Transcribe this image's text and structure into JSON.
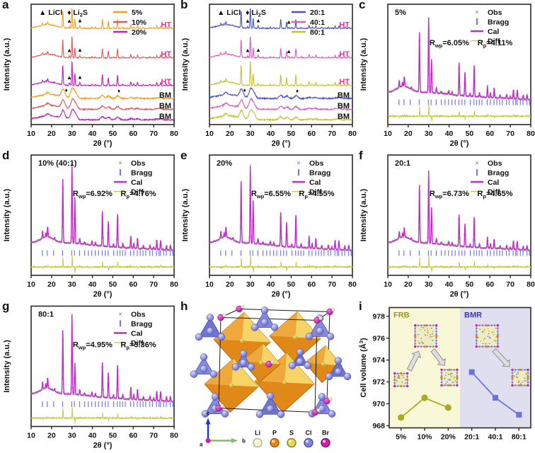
{
  "axis": {
    "xlabel": "2θ (°)",
    "ylabel": "Intensity (a.u.)",
    "xticks": [
      10,
      20,
      30,
      40,
      50,
      60,
      70,
      80
    ],
    "xlim": [
      10,
      80
    ]
  },
  "marker_legend": {
    "sym1": "▲",
    "name1": "LiCl",
    "sym2": "♦",
    "name2_base": "Li",
    "name2_sub": "2",
    "name2_end": "S"
  },
  "rietveld_legend": [
    "Obs",
    "Bragg",
    "Cal",
    "Diff"
  ],
  "colors": {
    "obs": "#7f7f7f",
    "bragg": "#7878e8",
    "cal": "#c02ec8",
    "diff": "#c6c63c",
    "ht_label": "#ee2e9b",
    "bm_label": "#111111",
    "axis": "#2b2b2b"
  },
  "shared": {
    "ht_peaks": [
      [
        15.6,
        0.09
      ],
      [
        17.2,
        0.05
      ],
      [
        18.1,
        0.13
      ],
      [
        21.5,
        0.03
      ],
      [
        25.5,
        0.8
      ],
      [
        30.0,
        1.0
      ],
      [
        31.4,
        0.48
      ],
      [
        33.8,
        0.07
      ],
      [
        36.2,
        0.03
      ],
      [
        39.8,
        0.05
      ],
      [
        41.5,
        0.04
      ],
      [
        44.9,
        0.44
      ],
      [
        47.8,
        0.32
      ],
      [
        50.3,
        0.04
      ],
      [
        52.3,
        0.42
      ],
      [
        54.9,
        0.05
      ],
      [
        58.8,
        0.15
      ],
      [
        60.3,
        0.06
      ],
      [
        62.1,
        0.13
      ],
      [
        65.0,
        0.04
      ],
      [
        68.2,
        0.05
      ],
      [
        70.0,
        0.03
      ],
      [
        71.5,
        0.12
      ],
      [
        73.4,
        0.12
      ],
      [
        76.3,
        0.05
      ],
      [
        78.2,
        0.06
      ]
    ],
    "bm_peaks": [
      [
        18.0,
        0.25
      ],
      [
        25.7,
        0.85
      ],
      [
        30.2,
        1.0
      ],
      [
        31.8,
        0.55
      ],
      [
        44.9,
        0.35
      ],
      [
        47.9,
        0.28
      ],
      [
        52.4,
        0.3
      ],
      [
        59.0,
        0.12
      ],
      [
        62.0,
        0.1
      ],
      [
        71.8,
        0.08
      ],
      [
        73.5,
        0.08
      ]
    ],
    "bragg_positions": [
      15.5,
      17.9,
      21.0,
      25.4,
      29.9,
      31.2,
      33.7,
      36.2,
      38.0,
      39.7,
      41.4,
      43.0,
      44.8,
      46.3,
      47.7,
      50.4,
      52.2,
      53.5,
      54.8,
      56.1,
      58.7,
      60.2,
      62.0,
      63.4,
      64.8,
      66.1,
      68.1,
      69.4,
      71.4,
      72.6,
      73.3,
      74.9,
      76.2,
      78.1,
      79.4
    ]
  },
  "chart_data": [
    {
      "panel": "a",
      "type": "line",
      "subtype": "xrd-stack",
      "xlabel": "2θ (°)",
      "ylabel": "Intensity (a.u.)",
      "xlim": [
        10,
        80
      ],
      "legend": [
        {
          "label": "5%",
          "color": "#f59e2b"
        },
        {
          "label": "10%",
          "color": "#e25b5b"
        },
        {
          "label": "20%",
          "color": "#bb22bb"
        }
      ],
      "traces": [
        {
          "name": "5% HT",
          "color": "#f59e2b",
          "kind": "HT",
          "offset": 0.79,
          "amp": 0.175,
          "right": "HT",
          "extra": [
            [
              28.7,
              0.1
            ],
            [
              33.9,
              0.06
            ]
          ],
          "markers": [
            {
              "x": 28.7,
              "s": "▲"
            },
            {
              "x": 33.9,
              "s": "▲"
            }
          ]
        },
        {
          "name": "10% HT",
          "color": "#e25b5b",
          "kind": "HT",
          "offset": 0.545,
          "amp": 0.185,
          "right": "HT",
          "extra": [
            [
              28.7,
              0.1
            ],
            [
              33.9,
              0.06
            ]
          ],
          "markers": [
            {
              "x": 28.7,
              "s": "▲"
            },
            {
              "x": 33.9,
              "s": "▲"
            }
          ]
        },
        {
          "name": "20% HT",
          "color": "#bb22bb",
          "kind": "HT",
          "offset": 0.315,
          "amp": 0.21,
          "right": "HT",
          "extra": [
            [
              28.7,
              0.1
            ],
            [
              33.9,
              0.06
            ]
          ],
          "markers": [
            {
              "x": 28.7,
              "s": "▲"
            },
            {
              "x": 33.9,
              "s": "▲"
            }
          ]
        },
        {
          "name": "5% BM",
          "color": "#f59e2b",
          "kind": "BM",
          "offset": 0.205,
          "amp": 0.075,
          "right": "BM",
          "markers": [
            {
              "x": 27.2,
              "s": "♦"
            },
            {
              "x": 53.0,
              "s": "♦"
            }
          ]
        },
        {
          "name": "10% BM",
          "color": "#e25b5b",
          "kind": "BM",
          "offset": 0.115,
          "amp": 0.075,
          "right": "BM",
          "markers": []
        },
        {
          "name": "20% BM",
          "color": "#bb22bb",
          "kind": "BM",
          "offset": 0.028,
          "amp": 0.075,
          "right": "BM",
          "markers": []
        }
      ]
    },
    {
      "panel": "b",
      "type": "line",
      "subtype": "xrd-stack",
      "xlabel": "2θ (°)",
      "ylabel": "Intensity (a.u.)",
      "xlim": [
        10,
        80
      ],
      "legend": [
        {
          "label": "20:1",
          "color": "#4a52c4"
        },
        {
          "label": "40:1",
          "color": "#e05abe"
        },
        {
          "label": "80:1",
          "color": "#c3c32f"
        }
      ],
      "traces": [
        {
          "name": "20:1 HT",
          "color": "#4a52c4",
          "kind": "HT",
          "offset": 0.79,
          "amp": 0.175,
          "right": "HT",
          "extra": [
            [
              28.7,
              0.09
            ],
            [
              33.9,
              0.05
            ],
            [
              48.9,
              0.05
            ]
          ],
          "markers": [
            {
              "x": 28.7,
              "s": "▲"
            },
            {
              "x": 33.9,
              "s": "▲"
            },
            {
              "x": 48.9,
              "s": "▲"
            }
          ]
        },
        {
          "name": "40:1 HT",
          "color": "#e05abe",
          "kind": "HT",
          "offset": 0.545,
          "amp": 0.185,
          "right": "HT",
          "extra": [
            [
              28.7,
              0.09
            ],
            [
              33.9,
              0.05
            ],
            [
              48.9,
              0.05
            ]
          ],
          "markers": [
            {
              "x": 28.7,
              "s": "▲"
            },
            {
              "x": 33.9,
              "s": "▲"
            },
            {
              "x": 48.9,
              "s": "▲"
            }
          ]
        },
        {
          "name": "80:1 HT",
          "color": "#c3c32f",
          "kind": "HT",
          "offset": 0.315,
          "amp": 0.21,
          "right": "HT",
          "extra": [],
          "markers": []
        },
        {
          "name": "20:1 BM",
          "color": "#4a52c4",
          "kind": "BM",
          "offset": 0.205,
          "amp": 0.075,
          "right": "BM",
          "markers": [
            {
              "x": 27.2,
              "s": "♦"
            },
            {
              "x": 53.0,
              "s": "♦"
            }
          ]
        },
        {
          "name": "40:1 BM",
          "color": "#e05abe",
          "kind": "BM",
          "offset": 0.115,
          "amp": 0.075,
          "right": "BM",
          "markers": []
        },
        {
          "name": "80:1 BM",
          "color": "#c3c32f",
          "kind": "BM",
          "offset": 0.028,
          "amp": 0.075,
          "right": "BM",
          "markers": []
        }
      ]
    },
    {
      "panel": "c",
      "type": "rietveld",
      "sample": "5%",
      "rwp": "=6.05%",
      "rp": "=4.11%",
      "amp": 0.62,
      "p31": 0.45
    },
    {
      "panel": "d",
      "type": "rietveld",
      "sample": "10% (40:1)",
      "rwp": "=6.92%",
      "rp": "=4.76%",
      "amp": 0.66,
      "p31": 0.58
    },
    {
      "panel": "e",
      "type": "rietveld",
      "sample": "20%",
      "rwp": "=6.55%",
      "rp": "=4.55%",
      "amp": 0.64,
      "p31": 0.56
    },
    {
      "panel": "f",
      "type": "rietveld",
      "sample": "20:1",
      "rwp": "=6.73%",
      "rp": "=4.65%",
      "amp": 0.6,
      "p31": 0.5
    },
    {
      "panel": "g",
      "type": "rietveld",
      "sample": "80:1",
      "rwp": "=4.95%",
      "rp": "=3.36%",
      "amp": 0.66,
      "p31": 0.4
    },
    {
      "panel": "h",
      "type": "structure",
      "legend": [
        {
          "label": "Li",
          "fill": "#f6f2d2",
          "ring": "#b8b894"
        },
        {
          "label": "P",
          "fill": "#e8861a",
          "ring": "#a85f00"
        },
        {
          "label": "S",
          "fill": "#e8d44d",
          "ring": "#8a8a20"
        },
        {
          "label": "Cl",
          "fill": "#8084d8",
          "ring": "#5054b0"
        },
        {
          "label": "Br",
          "fill": "#cc22aa",
          "ring": "#8a0f70"
        }
      ],
      "axes_labels": {
        "a": "a",
        "b": "b",
        "c": "c"
      }
    },
    {
      "panel": "i",
      "type": "scatter",
      "ylabel_base": "Cell volume (Å",
      "ylabel_sup": "3",
      "ylabel_end": ")",
      "ylim": [
        967.8,
        978.8
      ],
      "yticks": [
        968,
        970,
        972,
        974,
        976,
        978
      ],
      "categories": [
        "5%",
        "10%",
        "20%",
        "20:1",
        "40:1",
        "80:1"
      ],
      "regions": [
        {
          "label": "FRB",
          "color": "#9a9a18",
          "bg": "#f8f8d8"
        },
        {
          "label": "BMR",
          "color": "#3a3ab0",
          "bg": "#dfdff0"
        }
      ],
      "series": [
        {
          "name": "FRB",
          "color": "#aaaa22",
          "marker": "circle",
          "x": [
            0,
            1,
            2
          ],
          "values": [
            968.75,
            970.55,
            969.65
          ]
        },
        {
          "name": "BMR",
          "color": "#6b74dc",
          "marker": "square",
          "x": [
            3,
            4,
            5
          ],
          "values": [
            972.9,
            970.55,
            969.0
          ]
        }
      ],
      "insets": [
        {
          "cat": 0.0,
          "y": 972.2,
          "s": 18
        },
        {
          "cat": 1.05,
          "y": 976.2,
          "s": 30
        },
        {
          "cat": 2.05,
          "y": 972.4,
          "s": 22
        },
        {
          "cat": 3.65,
          "y": 976.2,
          "s": 30
        },
        {
          "cat": 5.05,
          "y": 972.4,
          "s": 22
        }
      ],
      "arrows": [
        {
          "c1": 0.35,
          "y1": 973.1,
          "c2": 0.75,
          "y2": 974.8
        },
        {
          "c1": 1.35,
          "y1": 974.9,
          "c2": 1.85,
          "y2": 973.5
        },
        {
          "c1": 3.95,
          "y1": 974.9,
          "c2": 4.6,
          "y2": 973.4
        }
      ]
    }
  ]
}
